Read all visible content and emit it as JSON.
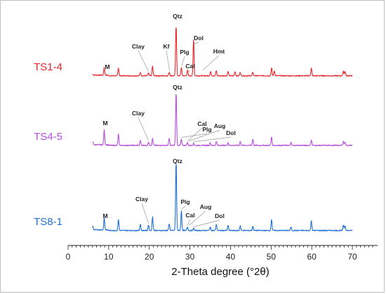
{
  "chart_data": {
    "type": "line",
    "title": "",
    "xlabel": "2-Theta degree (°2θ)",
    "ylabel": "",
    "xlim": [
      0,
      75
    ],
    "x_ticks": [
      0,
      10,
      20,
      30,
      40,
      50,
      60,
      70
    ],
    "grid": false,
    "series": [
      {
        "name": "TS1-4",
        "color": "#e8262b",
        "peaks": [
          [
            6.1,
            1
          ],
          [
            8.9,
            11
          ],
          [
            12.4,
            11
          ],
          [
            17.8,
            5
          ],
          [
            19.8,
            4
          ],
          [
            20.8,
            14
          ],
          [
            24.9,
            5
          ],
          [
            26.6,
            72
          ],
          [
            27.9,
            12
          ],
          [
            29.4,
            8
          ],
          [
            30.9,
            52
          ],
          [
            35.1,
            6
          ],
          [
            36.5,
            7
          ],
          [
            39.4,
            6
          ],
          [
            41.1,
            6
          ],
          [
            42.4,
            5
          ],
          [
            45.5,
            5
          ],
          [
            50.1,
            11
          ],
          [
            50.8,
            7
          ],
          [
            59.9,
            11
          ],
          [
            67.8,
            7
          ],
          [
            68.2,
            6
          ]
        ],
        "annotations": [
          {
            "text": "M",
            "x": 8.9
          },
          {
            "text": "Clay",
            "x": 19.8
          },
          {
            "text": "Kf",
            "x": 25.0
          },
          {
            "text": "Qtz",
            "x": 26.6
          },
          {
            "text": "Plg",
            "x": 28.0
          },
          {
            "text": "Cal",
            "x": 29.4
          },
          {
            "text": "Dol",
            "x": 30.9
          },
          {
            "text": "Hmt",
            "x": 33.2
          }
        ]
      },
      {
        "name": "TS4-5",
        "color": "#b54fdc",
        "peaks": [
          [
            6.1,
            4
          ],
          [
            8.9,
            21
          ],
          [
            12.4,
            16
          ],
          [
            17.8,
            7
          ],
          [
            19.8,
            5
          ],
          [
            20.8,
            10
          ],
          [
            24.9,
            10
          ],
          [
            26.6,
            76
          ],
          [
            27.9,
            9
          ],
          [
            29.4,
            4
          ],
          [
            30.9,
            3
          ],
          [
            35.0,
            4
          ],
          [
            36.5,
            6
          ],
          [
            39.4,
            4
          ],
          [
            42.4,
            6
          ],
          [
            45.5,
            9
          ],
          [
            50.1,
            12
          ],
          [
            54.9,
            4
          ],
          [
            59.9,
            8
          ],
          [
            67.8,
            6
          ],
          [
            68.2,
            5
          ]
        ],
        "annotations": [
          {
            "text": "M",
            "x": 8.9
          },
          {
            "text": "Clay",
            "x": 19.8
          },
          {
            "text": "Qtz",
            "x": 26.6
          },
          {
            "text": "Plg",
            "x": 27.9
          },
          {
            "text": "Cal",
            "x": 29.4
          },
          {
            "text": "Aug",
            "x": 29.8
          },
          {
            "text": "Dol",
            "x": 30.9
          }
        ]
      },
      {
        "name": "TS8-1",
        "color": "#1f6fd6",
        "peaks": [
          [
            6.1,
            5
          ],
          [
            8.9,
            17
          ],
          [
            12.4,
            16
          ],
          [
            17.8,
            9
          ],
          [
            19.8,
            8
          ],
          [
            20.8,
            20
          ],
          [
            24.9,
            10
          ],
          [
            26.6,
            98
          ],
          [
            27.9,
            28
          ],
          [
            29.4,
            5
          ],
          [
            30.9,
            3
          ],
          [
            35.0,
            5
          ],
          [
            36.5,
            9
          ],
          [
            39.4,
            7
          ],
          [
            42.4,
            7
          ],
          [
            45.5,
            6
          ],
          [
            50.1,
            16
          ],
          [
            54.9,
            5
          ],
          [
            59.9,
            14
          ],
          [
            67.8,
            8
          ],
          [
            68.2,
            7
          ]
        ],
        "annotations": [
          {
            "text": "M",
            "x": 8.9
          },
          {
            "text": "Clay",
            "x": 19.8
          },
          {
            "text": "Qtz",
            "x": 26.6
          },
          {
            "text": "Plg",
            "x": 27.9
          },
          {
            "text": "Cal",
            "x": 29.4
          },
          {
            "text": "Aug",
            "x": 29.8
          },
          {
            "text": "Dol",
            "x": 30.9
          }
        ]
      }
    ]
  }
}
